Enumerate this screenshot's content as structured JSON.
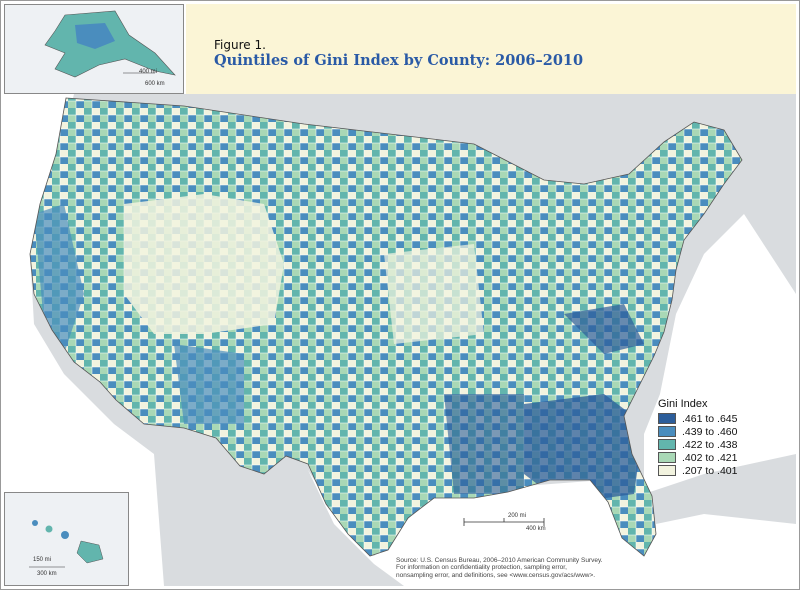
{
  "header": {
    "figure_label": "Figure 1.",
    "title": "Quintiles of Gini Index by County: 2006–2010"
  },
  "legend": {
    "title": "Gini Index",
    "items": [
      {
        "label": ".461 to .645",
        "color": "#2c5d9a"
      },
      {
        "label": ".439 to .460",
        "color": "#4a8dbe"
      },
      {
        "label": ".422 to .438",
        "color": "#62b5ad"
      },
      {
        "label": ".402 to .421",
        "color": "#a9d8b6"
      },
      {
        "label": ".207 to .401",
        "color": "#f2f3df"
      }
    ]
  },
  "scale_bars": {
    "main": {
      "miles": "200 mi",
      "km": "400 km"
    },
    "alaska": {
      "miles": "400 mi",
      "km": "600 km"
    },
    "hawaii": {
      "miles": "150 mi",
      "km": "300 km"
    }
  },
  "source": {
    "line1": "Source: U.S. Census Bureau, 2006–2010 American Community Survey.",
    "line2": "For information on confidentiality protection, sampling error,",
    "line3": "nonsampling error, and definitions, see <www.census.gov/acs/www>."
  },
  "colors": {
    "land_outside": "#d9dcdf",
    "water": "#ffffff",
    "header_band": "#fbf5d6",
    "title": "#2a5aa6"
  }
}
